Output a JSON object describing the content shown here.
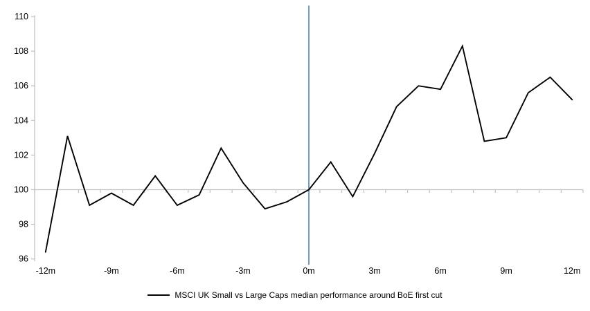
{
  "chart_data": {
    "type": "line",
    "title": "",
    "xlabel": "",
    "ylabel": "",
    "x": [
      -12,
      -11,
      -10,
      -9,
      -8,
      -7,
      -6,
      -5,
      -4,
      -3,
      -2,
      -1,
      0,
      1,
      2,
      3,
      4,
      5,
      6,
      7,
      8,
      9,
      10,
      11,
      12
    ],
    "series": [
      {
        "name": "MSCI UK Small vs Large Caps median performance around BoE first cut",
        "values": [
          96.4,
          103.1,
          99.1,
          99.8,
          99.1,
          100.8,
          99.1,
          99.7,
          102.4,
          100.4,
          98.9,
          99.3,
          100.0,
          101.6,
          99.6,
          102.1,
          104.8,
          106.0,
          105.8,
          108.3,
          102.8,
          103.0,
          105.6,
          106.5,
          105.2
        ]
      }
    ],
    "x_tick_labels": [
      "-12m",
      "-9m",
      "-6m",
      "-3m",
      "0m",
      "3m",
      "6m",
      "9m",
      "12m"
    ],
    "x_tick_positions": [
      -12,
      -9,
      -6,
      -3,
      0,
      3,
      6,
      9,
      12
    ],
    "y_ticks": [
      96,
      98,
      100,
      102,
      104,
      106,
      108,
      110
    ],
    "ylim": [
      96,
      110
    ],
    "xlim_months": [
      -12.5,
      12.5
    ],
    "axis_crosses_at": 100,
    "grid": "none (x-axis baseline drawn at y=100 with downward month ticks)",
    "legend_position": "bottom-center",
    "annotations": [
      {
        "type": "vline",
        "x": 0,
        "color": "#4f81bd",
        "meaning": "BoE first cut (0m)"
      }
    ]
  },
  "legend": {
    "label": "MSCI UK Small vs Large Caps median performance around BoE first cut"
  },
  "colors": {
    "series_line": "#000000",
    "axis": "#bfbfbf",
    "event_line": "#4f81bd",
    "text": "#000000",
    "background": "#ffffff"
  }
}
